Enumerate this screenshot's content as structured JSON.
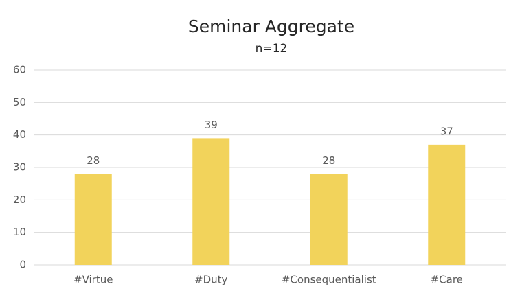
{
  "chart_data": {
    "type": "bar",
    "title": "Seminar Aggregate",
    "subtitle": "n=12",
    "categories": [
      "#Virtue",
      "#Duty",
      "#Consequentialist",
      "#Care"
    ],
    "values": [
      28,
      39,
      28,
      37
    ],
    "color": "#f2d35b",
    "ylim": [
      0,
      60
    ],
    "yticks": [
      0,
      10,
      20,
      30,
      40,
      50,
      60
    ],
    "grid": true
  }
}
